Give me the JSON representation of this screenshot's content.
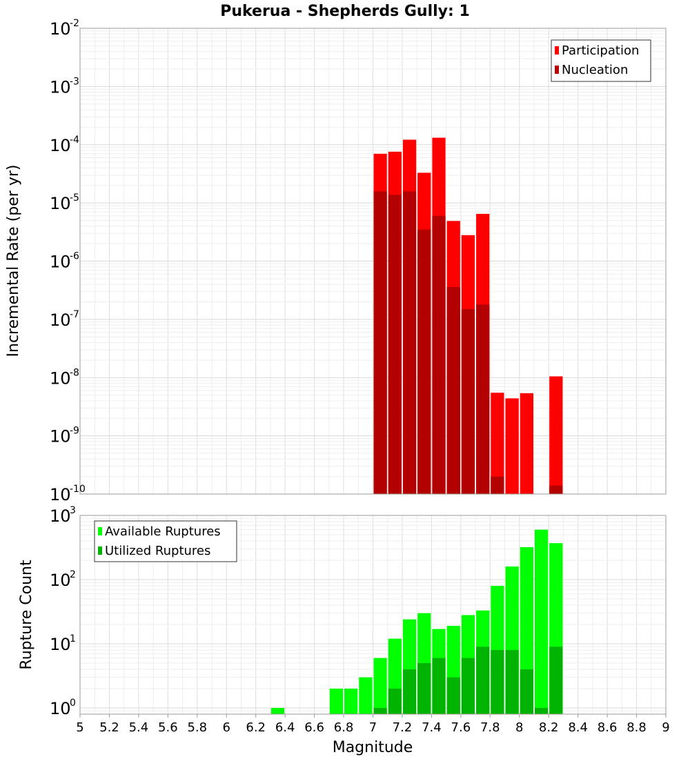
{
  "chart_data": [
    {
      "type": "bar",
      "title": "Pukerua - Shepherds Gully: 1",
      "xlabel": "Magnitude",
      "ylabel": "Incremental Rate (per yr)",
      "y_scale": "log",
      "xlim": [
        5,
        9
      ],
      "ylim": [
        1e-10,
        0.01
      ],
      "grid": true,
      "legend_position": "top-right",
      "bin_width": 0.1,
      "series": [
        {
          "name": "Participation",
          "color": "#ff0000",
          "x": [
            7.05,
            7.15,
            7.25,
            7.35,
            7.45,
            7.55,
            7.65,
            7.75,
            7.85,
            7.95,
            8.05,
            8.25
          ],
          "values": [
            7e-05,
            7.6e-05,
            0.000122,
            3.3e-05,
            0.000132,
            4.9e-06,
            2.8e-06,
            6.5e-06,
            5.5e-09,
            4.4e-09,
            5.4e-09,
            1.05e-08
          ]
        },
        {
          "name": "Nucleation",
          "color": "#b30000",
          "x": [
            7.05,
            7.15,
            7.25,
            7.35,
            7.45,
            7.55,
            7.65,
            7.75,
            7.85,
            8.25
          ],
          "values": [
            1.58e-05,
            1.38e-05,
            1.58e-05,
            3.5e-06,
            6e-06,
            3.6e-07,
            1.5e-07,
            1.8e-07,
            2e-10,
            1.4e-10
          ]
        }
      ]
    },
    {
      "type": "bar",
      "xlabel": "Magnitude",
      "ylabel": "Rupture Count",
      "y_scale": "log",
      "xlim": [
        5,
        9
      ],
      "ylim": [
        0.8,
        1000
      ],
      "grid": true,
      "legend_position": "top-left",
      "bin_width": 0.1,
      "x_ticks": [
        "5",
        "5.2",
        "5.4",
        "5.6",
        "5.8",
        "6",
        "6.2",
        "6.4",
        "6.6",
        "6.8",
        "7",
        "7.2",
        "7.4",
        "7.6",
        "7.8",
        "8",
        "8.2",
        "8.4",
        "8.6",
        "8.8",
        "9"
      ],
      "series": [
        {
          "name": "Available Ruptures",
          "color": "#00ff00",
          "x": [
            6.35,
            6.75,
            6.85,
            6.95,
            7.05,
            7.15,
            7.25,
            7.35,
            7.45,
            7.55,
            7.65,
            7.75,
            7.85,
            7.95,
            8.05,
            8.15,
            8.25
          ],
          "values": [
            1,
            2,
            2,
            3,
            6,
            12,
            24,
            30,
            17,
            19,
            28,
            33,
            80,
            160,
            320,
            600,
            370
          ]
        },
        {
          "name": "Utilized Ruptures",
          "color": "#00b300",
          "x": [
            7.05,
            7.15,
            7.25,
            7.35,
            7.45,
            7.55,
            7.65,
            7.75,
            7.85,
            7.95,
            8.05,
            8.15,
            8.25
          ],
          "values": [
            1,
            2,
            4,
            5,
            6,
            3,
            6,
            9,
            8,
            8,
            4,
            1,
            9
          ]
        }
      ]
    }
  ]
}
